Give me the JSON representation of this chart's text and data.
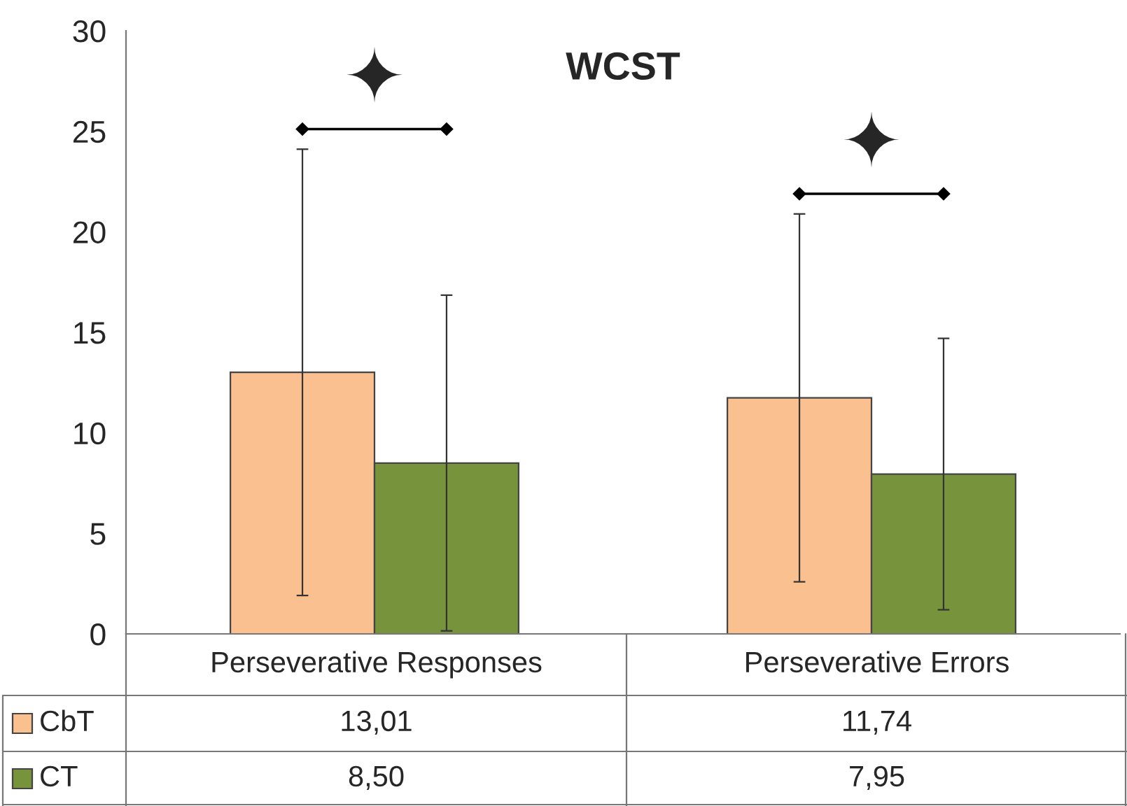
{
  "chart_data": {
    "type": "bar",
    "title": "WCST",
    "categories": [
      "Perseverative Responses",
      "Perseverative Errors"
    ],
    "series": [
      {
        "name": "CbT",
        "color": "#fac090",
        "values": [
          13.01,
          11.74
        ],
        "errors": [
          11.1,
          9.15
        ],
        "value_labels": [
          "13,01",
          "11,74"
        ]
      },
      {
        "name": "CT",
        "color": "#77933c",
        "values": [
          8.5,
          7.95
        ],
        "errors": [
          8.35,
          6.75
        ],
        "value_labels": [
          "8,50",
          "7,95"
        ]
      }
    ],
    "ylim": [
      0,
      30
    ],
    "yticks": [
      0,
      5,
      10,
      15,
      20,
      25,
      30
    ],
    "grid": false,
    "legend": "bottom",
    "annotations": [
      "✦",
      "✦"
    ]
  }
}
